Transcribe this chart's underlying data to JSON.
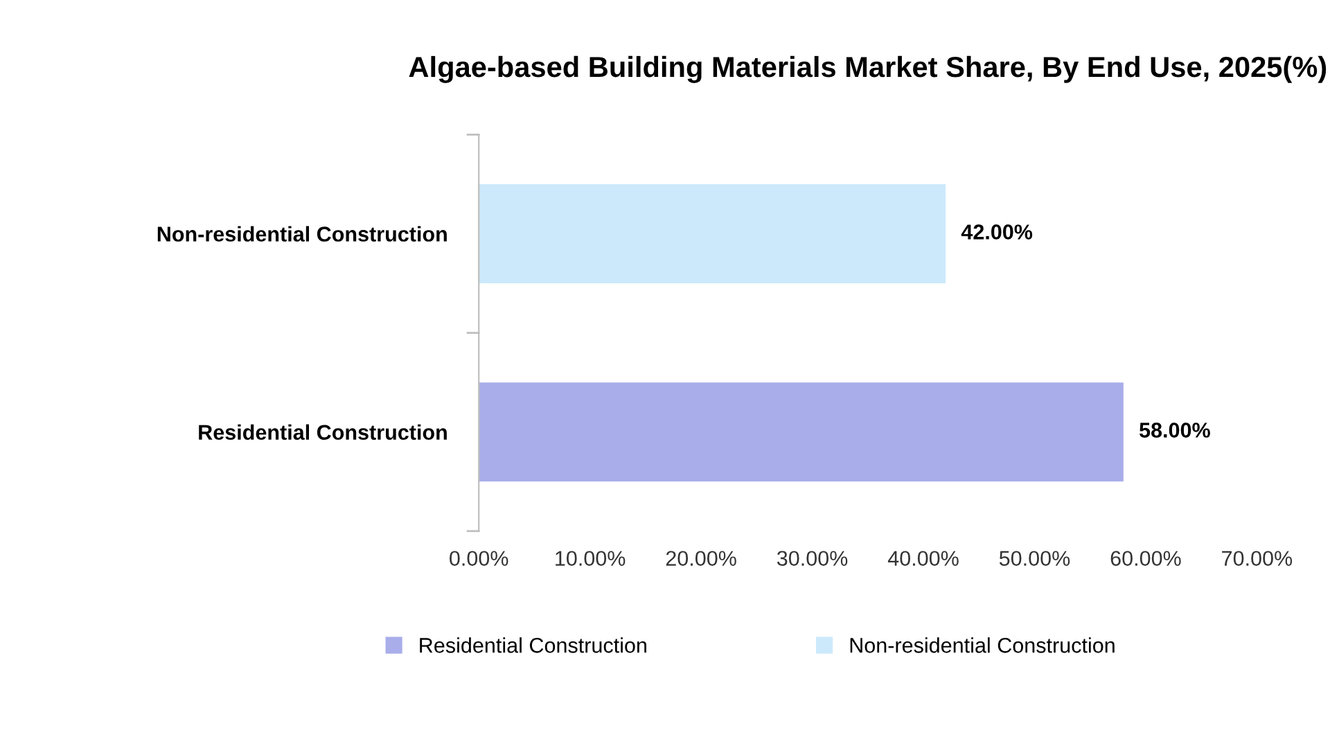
{
  "chart_data": {
    "type": "bar",
    "orientation": "horizontal",
    "title": "Algae-based Building Materials Market Share, By End Use, 2025(%)",
    "categories": [
      "Non-residential Construction",
      "Residential Construction"
    ],
    "series": [
      {
        "name": "Residential Construction",
        "color": "#a9aeea",
        "values": [
          null,
          58
        ],
        "value_labels": [
          null,
          "58.00%"
        ]
      },
      {
        "name": "Non-residential Construction",
        "color": "#cce9fb",
        "values": [
          42,
          null
        ],
        "value_labels": [
          "42.00%",
          null
        ]
      }
    ],
    "xlim": [
      0,
      70
    ],
    "xticks": [
      {
        "value": 0,
        "label": "0.00%"
      },
      {
        "value": 10,
        "label": "10.00%"
      },
      {
        "value": 20,
        "label": "20.00%"
      },
      {
        "value": 30,
        "label": "30.00%"
      },
      {
        "value": 40,
        "label": "40.00%"
      },
      {
        "value": 50,
        "label": "50.00%"
      },
      {
        "value": 60,
        "label": "60.00%"
      },
      {
        "value": 70,
        "label": "70.00%"
      }
    ],
    "grid": false,
    "legend": "bottom"
  }
}
